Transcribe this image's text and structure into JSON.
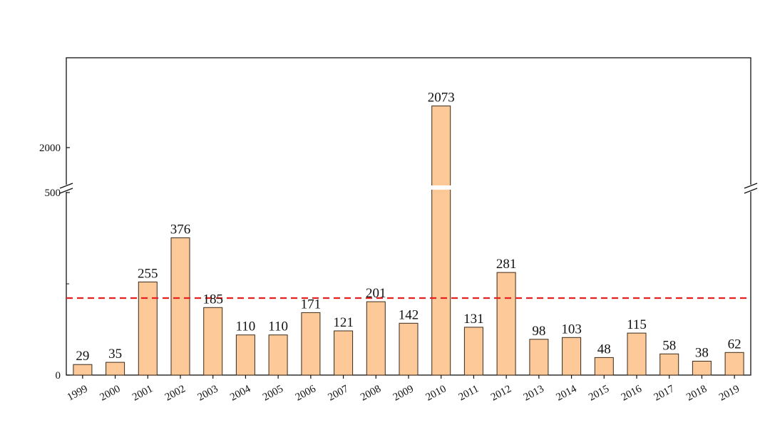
{
  "chart_data": {
    "type": "bar",
    "title": "",
    "xlabel": "",
    "ylabel": "",
    "categories": [
      "1999",
      "2000",
      "2001",
      "2002",
      "2003",
      "2004",
      "2005",
      "2006",
      "2007",
      "2008",
      "2009",
      "2010",
      "2011",
      "2012",
      "2013",
      "2014",
      "2015",
      "2016",
      "2017",
      "2018",
      "2019"
    ],
    "values": [
      29,
      35,
      255,
      376,
      185,
      110,
      110,
      171,
      121,
      201,
      142,
      2073,
      131,
      281,
      98,
      103,
      48,
      115,
      58,
      38,
      62
    ],
    "data_labels": [
      "29",
      "35",
      "255",
      "376",
      "185",
      "110",
      "110",
      "171",
      "121",
      "201",
      "142",
      "2073",
      "131",
      "281",
      "98",
      "103",
      "48",
      "115",
      "58",
      "38",
      "62"
    ],
    "y_axis": {
      "broken": true,
      "lower_segment": [
        0,
        500
      ],
      "upper_segment": [
        1900,
        2300
      ],
      "tick_values": [
        0,
        500,
        2000
      ],
      "tick_labels": [
        "0",
        "500",
        "2000"
      ]
    },
    "reference_line": {
      "value": 211,
      "style": "dashed",
      "color": "#e8201f"
    },
    "grid": false,
    "legend": "none",
    "colors": {
      "bar_fill": "#fdc999",
      "bar_stroke": "#3a2a1a",
      "axis": "#111111"
    }
  }
}
